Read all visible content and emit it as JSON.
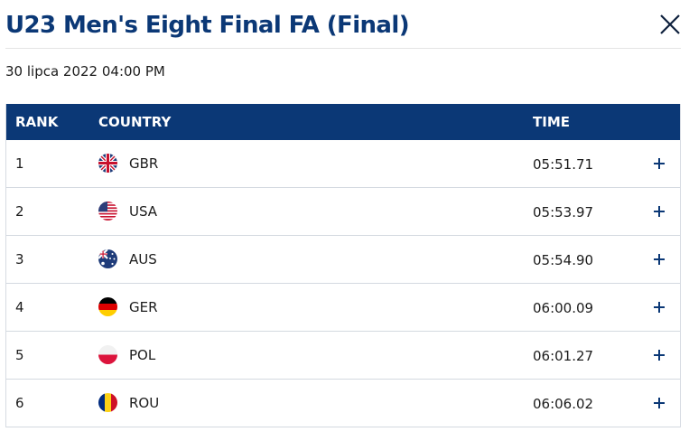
{
  "header": {
    "title": "U23 Men's Eight Final FA (Final)",
    "close_icon": "close-icon",
    "date": "30 lipca 2022 04:00 PM"
  },
  "table": {
    "columns": [
      "RANK",
      "COUNTRY",
      "TIME"
    ],
    "rows": [
      {
        "rank": "1",
        "flag_icon": "flag-gbr-icon",
        "country": "GBR",
        "time": "05:51.71"
      },
      {
        "rank": "2",
        "flag_icon": "flag-usa-icon",
        "country": "USA",
        "time": "05:53.97"
      },
      {
        "rank": "3",
        "flag_icon": "flag-aus-icon",
        "country": "AUS",
        "time": "05:54.90"
      },
      {
        "rank": "4",
        "flag_icon": "flag-ger-icon",
        "country": "GER",
        "time": "06:00.09"
      },
      {
        "rank": "5",
        "flag_icon": "flag-pol-icon",
        "country": "POL",
        "time": "06:01.27"
      },
      {
        "rank": "6",
        "flag_icon": "flag-rou-icon",
        "country": "ROU",
        "time": "06:06.02"
      }
    ],
    "expand_icon": "plus-icon"
  },
  "colors": {
    "brand_navy": "#0b3876",
    "row_divider": "#d4d9e0"
  }
}
